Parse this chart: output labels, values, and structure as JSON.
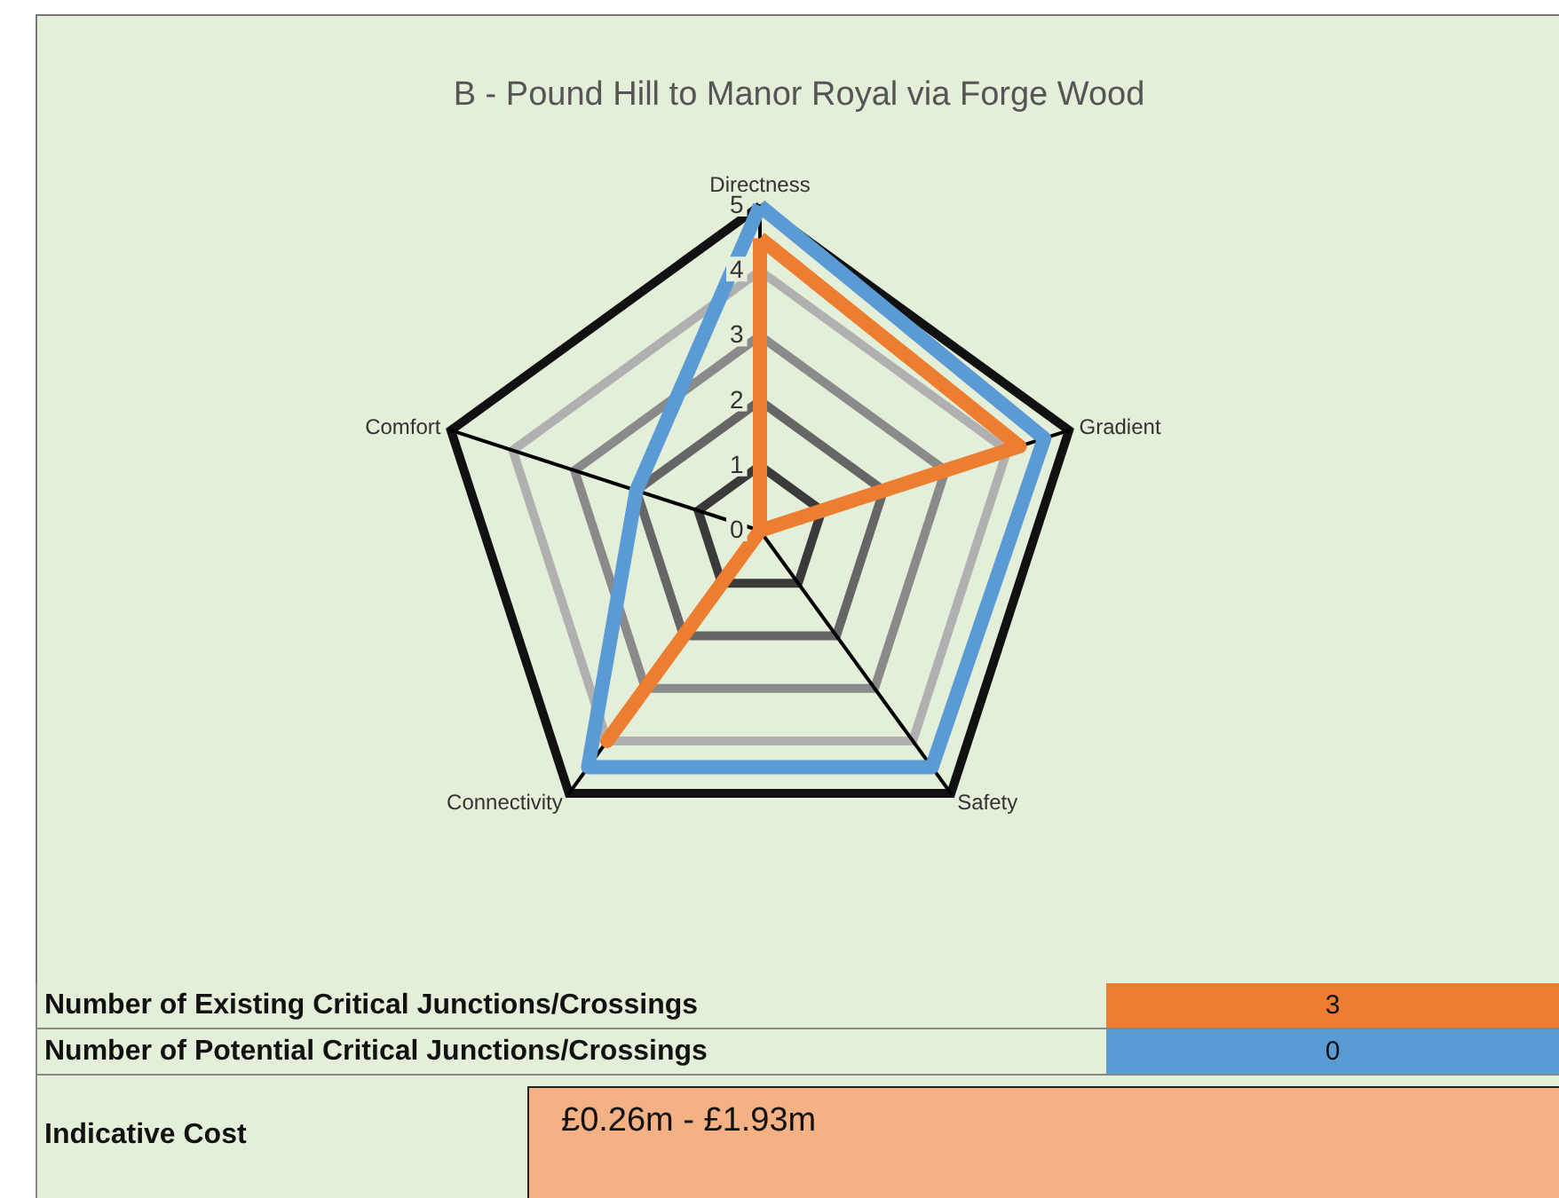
{
  "chart_data": {
    "type": "radar",
    "title": "B - Pound Hill to Manor Royal via Forge Wood",
    "categories": [
      "Directness",
      "Gradient",
      "Safety",
      "Connectivity",
      "Comfort"
    ],
    "series": [
      {
        "color": "#5b9bd5",
        "values": [
          5,
          4.6,
          4.5,
          4.5,
          2
        ]
      },
      {
        "color": "#ed7d31",
        "values": [
          4.5,
          4.2,
          0,
          4,
          0
        ]
      }
    ],
    "ylim": [
      0,
      5
    ],
    "yticks": [
      0,
      1,
      2,
      3,
      4,
      5
    ],
    "marker": "none",
    "annotations": [
      "Number of Existing Critical Junctions/Crossings",
      "3",
      "Number of Potential Critical Junctions/Crossings",
      "0",
      "Indicative Cost",
      "£0.26m - £1.93m"
    ]
  }
}
